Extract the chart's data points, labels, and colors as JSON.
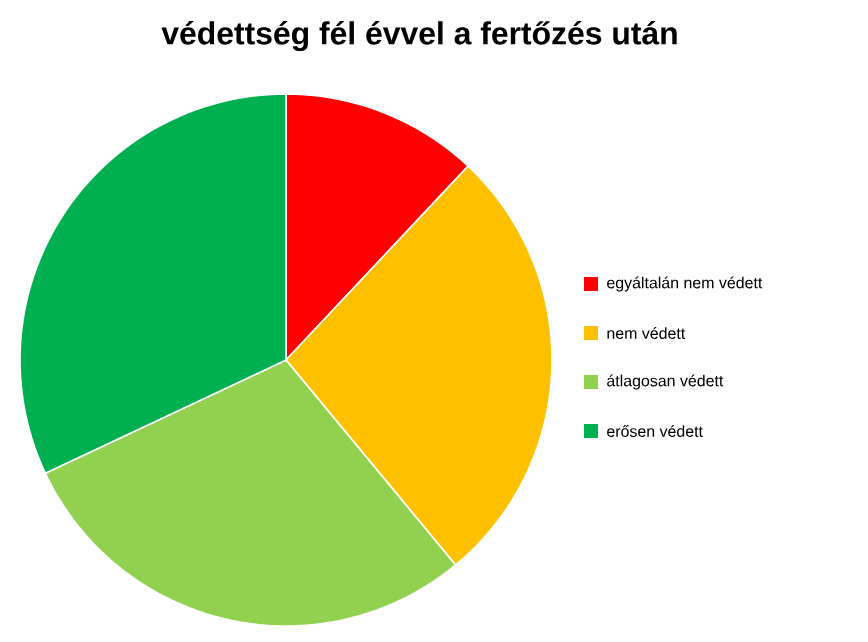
{
  "chart_data": {
    "type": "pie",
    "title": "védettség fél évvel a fertőzés után",
    "categories": [
      "egyáltalán nem védett",
      "nem védett",
      "átlagosan védett",
      "erősen védett"
    ],
    "values": [
      12,
      27,
      29,
      32
    ],
    "colors": [
      "#ff0000",
      "#ffc000",
      "#92d050",
      "#00b050"
    ],
    "legend": "right"
  }
}
